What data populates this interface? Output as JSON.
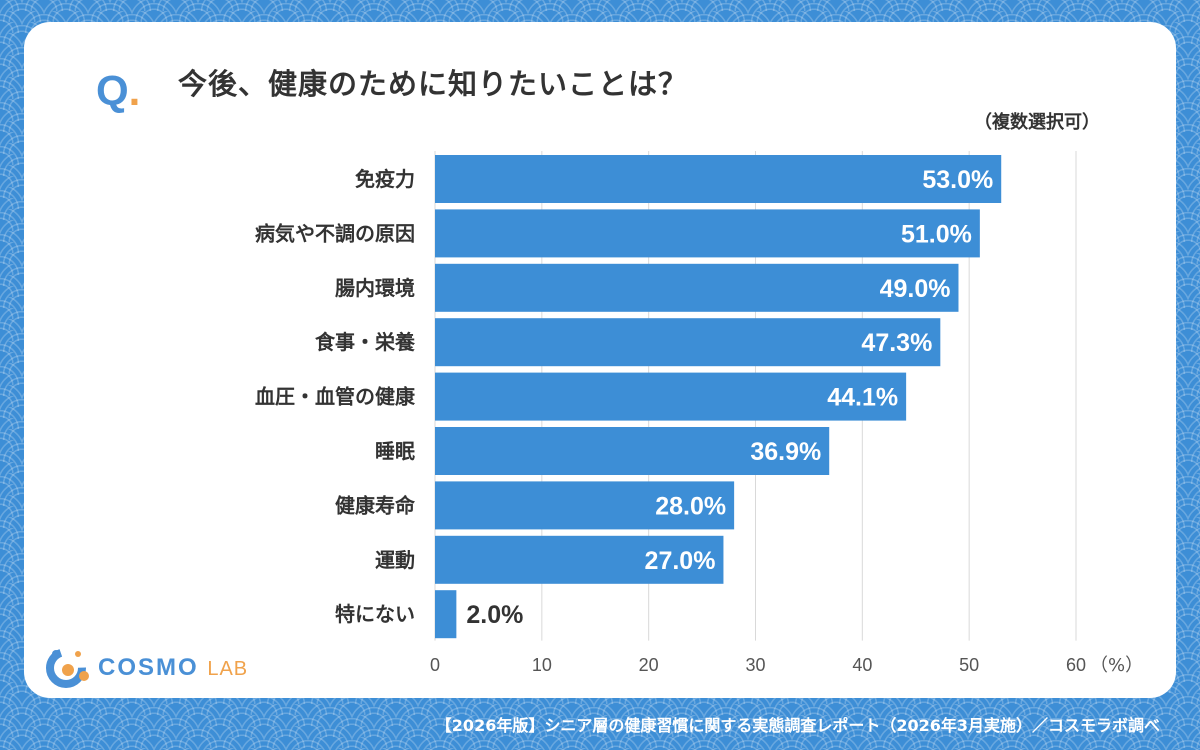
{
  "question_mark": "Q",
  "question": "今後、健康のために知りたいことは？",
  "note": "（複数選択可）",
  "logo": {
    "main": "COSMO",
    "sub": "LAB"
  },
  "footer": "【2026年版】シニア層の健康習慣に関する実態調査レポート（2026年3月実施）／コスモラボ調べ",
  "colors": {
    "bar": "#3d8ed6",
    "accent": "#f0a24b",
    "grid": "#d9d9d9",
    "text": "#333333"
  },
  "chart_data": {
    "type": "bar",
    "orientation": "horizontal",
    "categories": [
      "免疫力",
      "病気や不調の原因",
      "腸内環境",
      "食事・栄養",
      "血圧・血管の健康",
      "睡眠",
      "健康寿命",
      "運動",
      "特にない"
    ],
    "values": [
      53.0,
      51.0,
      49.0,
      47.3,
      44.1,
      36.9,
      28.0,
      27.0,
      2.0
    ],
    "value_labels": [
      "53.0%",
      "51.0%",
      "49.0%",
      "47.3%",
      "44.1%",
      "36.9%",
      "28.0%",
      "27.0%",
      "2.0%"
    ],
    "xlim": [
      0,
      60
    ],
    "xticks": [
      0,
      10,
      20,
      30,
      40,
      50,
      60
    ],
    "xunit": "（%）",
    "grid": true
  }
}
